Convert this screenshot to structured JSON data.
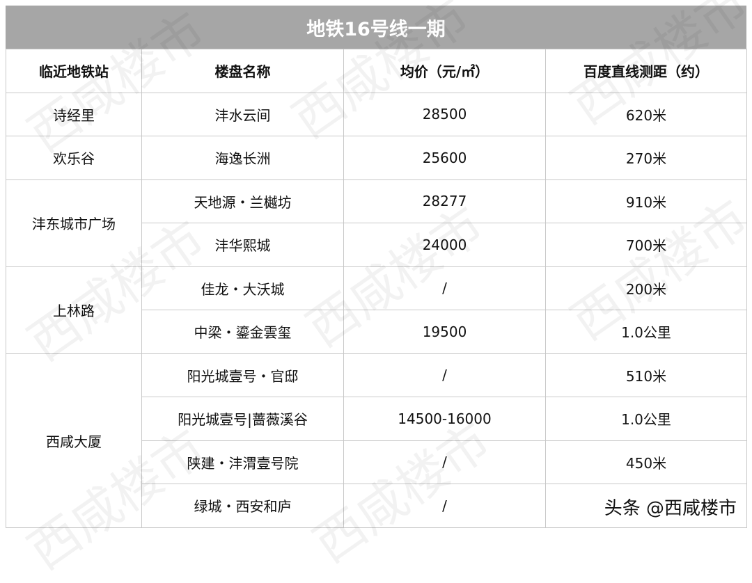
{
  "title": "地铁16号线一期",
  "headers": [
    "临近地铁站",
    "楼盘名称",
    "均价（元/㎡）",
    "百度直线测距（约）"
  ],
  "groups": [
    {
      "station": "诗经里",
      "rows": [
        {
          "name": "沣水云间",
          "price": "28500",
          "distance": "620米"
        }
      ]
    },
    {
      "station": "欢乐谷",
      "rows": [
        {
          "name": "海逸长洲",
          "price": "25600",
          "distance": "270米"
        }
      ]
    },
    {
      "station": "沣东城市广场",
      "rows": [
        {
          "name": "天地源・兰樾坊",
          "price": "28277",
          "distance": "910米"
        },
        {
          "name": "沣华熙城",
          "price": "24000",
          "distance": "700米"
        }
      ]
    },
    {
      "station": "上林路",
      "rows": [
        {
          "name": "佳龙・大沃城",
          "price": "/",
          "distance": "200米"
        },
        {
          "name": "中梁・鎏金雲玺",
          "price": "19500",
          "distance": "1.0公里"
        }
      ]
    },
    {
      "station": "西咸大厦",
      "rows": [
        {
          "name": "阳光城壹号・官邸",
          "price": "/",
          "distance": "510米"
        },
        {
          "name": "阳光城壹号|蔷薇溪谷",
          "price": "14500-16000",
          "distance": "1.0公里"
        },
        {
          "name": "陕建・沣渭壹号院",
          "price": "/",
          "distance": "450米"
        },
        {
          "name": "绿城・西安和庐",
          "price": "/",
          "distance": ""
        }
      ]
    }
  ],
  "watermark": "西咸楼市",
  "credit": "头条 @西咸楼市"
}
